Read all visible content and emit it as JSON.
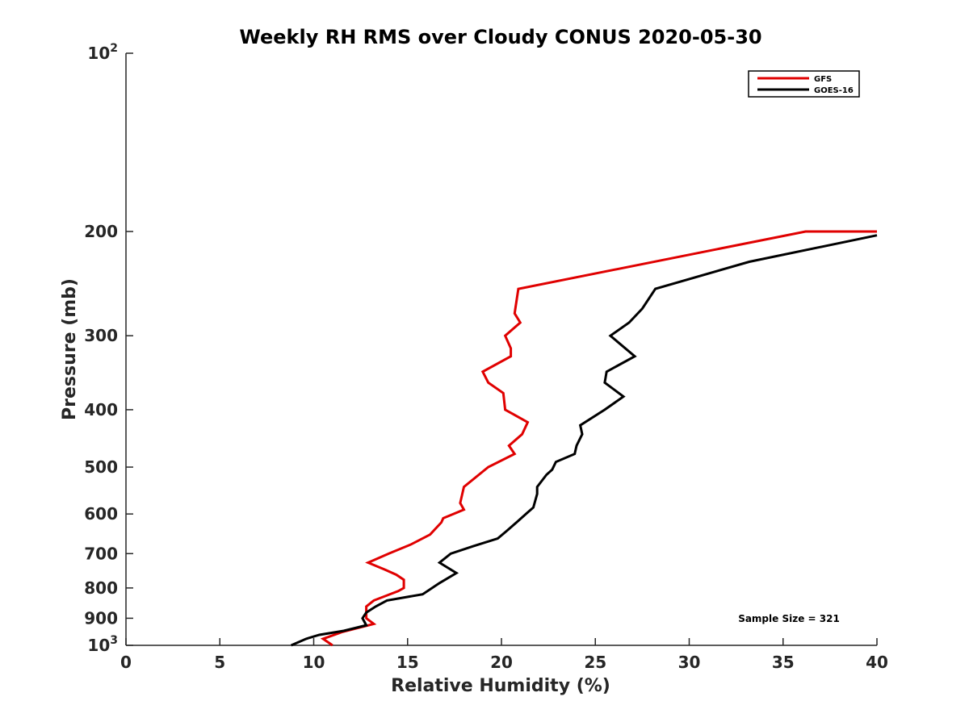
{
  "chart_data": {
    "type": "line",
    "title": "Weekly RH RMS over Cloudy CONUS 2020-05-30",
    "xlabel": "Relative Humidity (%)",
    "ylabel": "Pressure (mb)",
    "xlim": [
      0,
      40
    ],
    "ylim": [
      100,
      1000
    ],
    "y_scale": "log",
    "y_reversed": true,
    "x_ticks": [
      0,
      5,
      10,
      15,
      20,
      25,
      30,
      35,
      40
    ],
    "y_ticks": [
      {
        "value": 100,
        "base": "10",
        "exp": "2"
      },
      {
        "value": 200,
        "label": "200"
      },
      {
        "value": 300,
        "label": "300"
      },
      {
        "value": 400,
        "label": "400"
      },
      {
        "value": 500,
        "label": "500"
      },
      {
        "value": 600,
        "label": "600"
      },
      {
        "value": 700,
        "label": "700"
      },
      {
        "value": 800,
        "label": "800"
      },
      {
        "value": 900,
        "label": "900"
      },
      {
        "value": 1000,
        "base": "10",
        "exp": "3"
      }
    ],
    "grid": false,
    "legend_position": "top-right",
    "annotation": "Sample Size = 321",
    "series": [
      {
        "name": "GFS",
        "color": "#e00000",
        "points": [
          [
            40.0,
            200
          ],
          [
            36.2,
            200
          ],
          [
            20.9,
            250
          ],
          [
            20.7,
            275
          ],
          [
            21.0,
            285
          ],
          [
            20.2,
            300
          ],
          [
            20.5,
            315
          ],
          [
            20.5,
            325
          ],
          [
            19.0,
            345
          ],
          [
            19.3,
            360
          ],
          [
            20.1,
            375
          ],
          [
            20.2,
            400
          ],
          [
            21.4,
            420
          ],
          [
            21.1,
            440
          ],
          [
            20.4,
            460
          ],
          [
            20.7,
            475
          ],
          [
            19.3,
            500
          ],
          [
            18.0,
            540
          ],
          [
            17.8,
            575
          ],
          [
            18.0,
            590
          ],
          [
            16.9,
            610
          ],
          [
            16.8,
            620
          ],
          [
            16.2,
            650
          ],
          [
            15.2,
            675
          ],
          [
            14.0,
            700
          ],
          [
            12.9,
            725
          ],
          [
            13.8,
            745
          ],
          [
            14.4,
            760
          ],
          [
            14.8,
            775
          ],
          [
            14.8,
            800
          ],
          [
            14.5,
            810
          ],
          [
            13.2,
            840
          ],
          [
            12.8,
            860
          ],
          [
            12.8,
            900
          ],
          [
            13.2,
            920
          ],
          [
            11.5,
            950
          ],
          [
            10.5,
            975
          ],
          [
            11.0,
            1000
          ]
        ]
      },
      {
        "name": "GOES-16",
        "color": "#000000",
        "points": [
          [
            40.0,
            203
          ],
          [
            33.2,
            225
          ],
          [
            28.2,
            250
          ],
          [
            27.5,
            270
          ],
          [
            26.8,
            285
          ],
          [
            25.8,
            300
          ],
          [
            27.1,
            325
          ],
          [
            25.6,
            345
          ],
          [
            25.5,
            360
          ],
          [
            26.5,
            380
          ],
          [
            25.5,
            400
          ],
          [
            24.2,
            425
          ],
          [
            24.3,
            440
          ],
          [
            24.0,
            460
          ],
          [
            23.9,
            475
          ],
          [
            22.9,
            490
          ],
          [
            22.7,
            505
          ],
          [
            22.4,
            515
          ],
          [
            21.9,
            540
          ],
          [
            21.9,
            555
          ],
          [
            21.7,
            585
          ],
          [
            21.3,
            600
          ],
          [
            20.8,
            620
          ],
          [
            20.3,
            640
          ],
          [
            19.8,
            660
          ],
          [
            18.5,
            680
          ],
          [
            17.3,
            700
          ],
          [
            16.7,
            725
          ],
          [
            17.6,
            755
          ],
          [
            16.7,
            785
          ],
          [
            15.8,
            820
          ],
          [
            13.9,
            840
          ],
          [
            13.3,
            860
          ],
          [
            12.8,
            880
          ],
          [
            12.6,
            900
          ],
          [
            12.8,
            925
          ],
          [
            11.6,
            945
          ],
          [
            10.3,
            960
          ],
          [
            9.6,
            975
          ],
          [
            8.8,
            1000
          ]
        ]
      }
    ]
  }
}
